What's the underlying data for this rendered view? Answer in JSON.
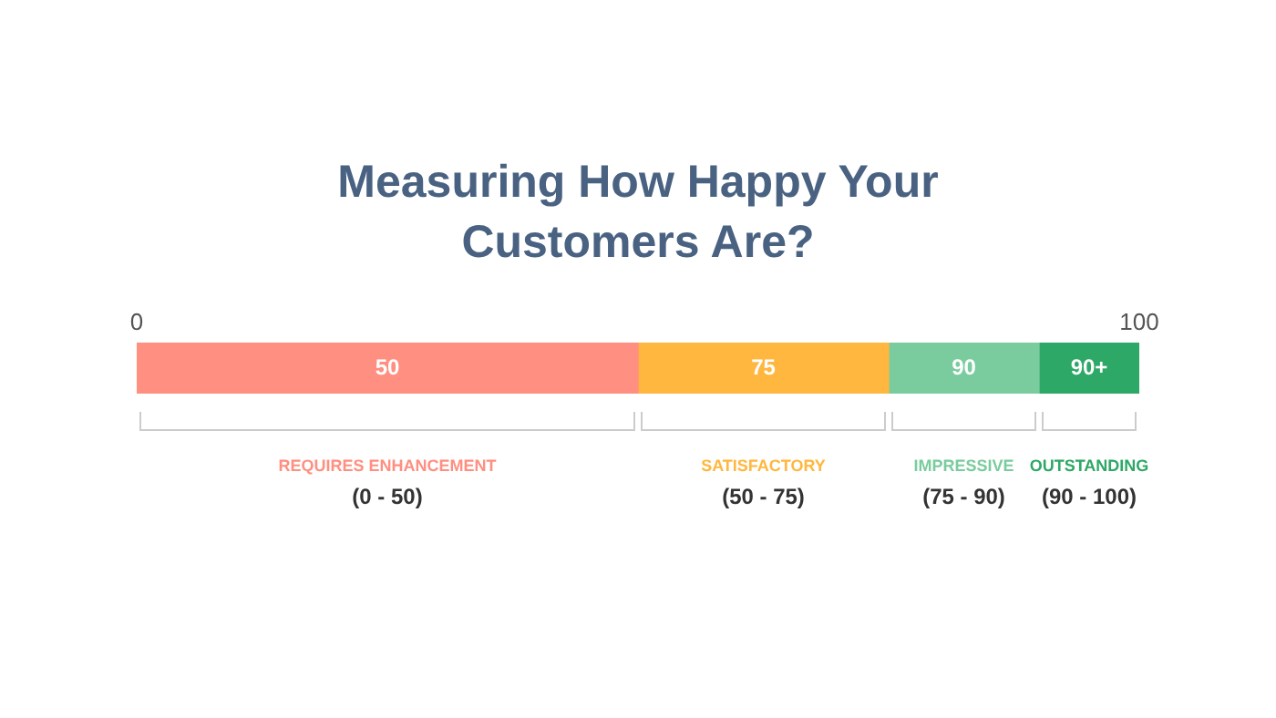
{
  "chart_data": {
    "type": "bar",
    "orientation": "horizontal",
    "stacked": true,
    "title": "Measuring How Happy Your Customers Are?",
    "categories": [
      null
    ],
    "series": [
      {
        "name": "REQUIRES ENHANCEMENT",
        "color": "#ff8f80",
        "values": [
          50
        ]
      },
      {
        "name": "SATISFACTORY",
        "color": "#ffb73f",
        "values": [
          25
        ]
      },
      {
        "name": "IMPRESSIVE",
        "color": "#7acc9e",
        "values": [
          15
        ]
      },
      {
        "name": "OUTSTANDING",
        "color": "#2ea866",
        "values": [
          10
        ]
      }
    ],
    "annotations": [
      "50",
      "75",
      "90",
      "90+",
      "(0 - 50)",
      "(50 - 75)",
      "(75 - 90)",
      "(90 - 100)"
    ],
    "xlim": [
      0,
      100
    ],
    "xticks": [
      0,
      100
    ],
    "legend": false
  }
}
